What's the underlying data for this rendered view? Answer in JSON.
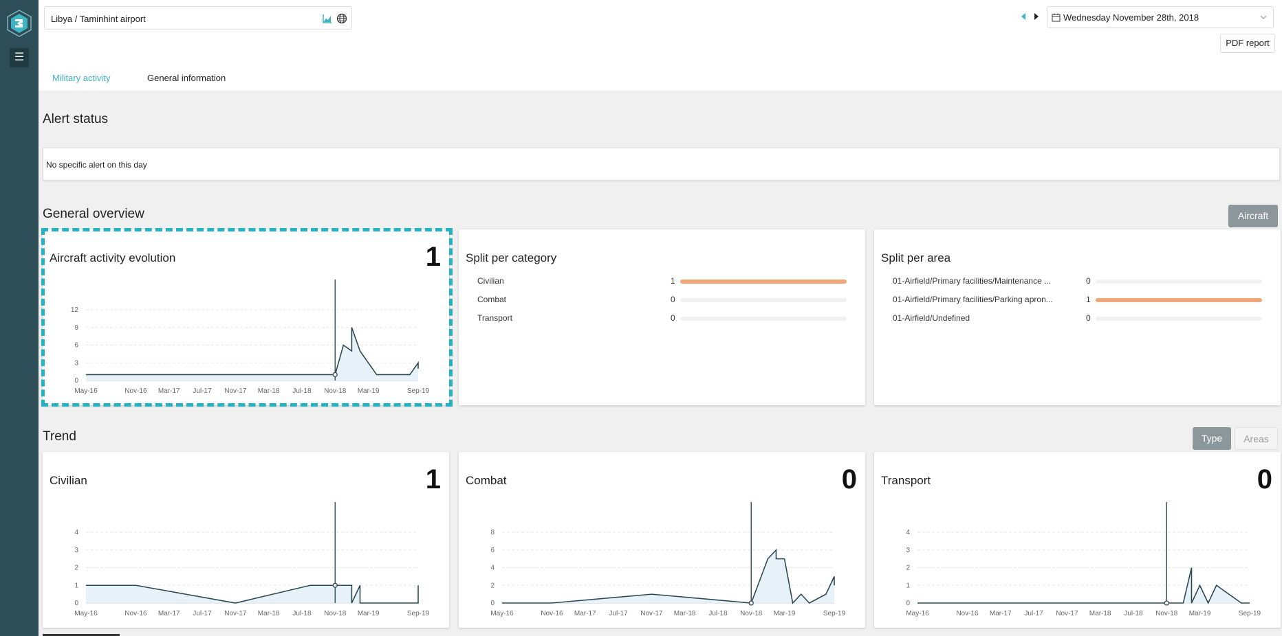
{
  "header": {
    "location": "Libya / Taminhint airport",
    "date": "Wednesday November 28th, 2018",
    "pdf_label": "PDF report",
    "tabs": [
      {
        "label": "Military activity",
        "active": true
      },
      {
        "label": "General information",
        "active": false
      }
    ]
  },
  "alert": {
    "title": "Alert status",
    "message": "No specific alert on this day"
  },
  "overview": {
    "title": "General overview",
    "toggle_label": "Aircraft",
    "activity": {
      "title": "Aircraft activity evolution",
      "value": "1"
    },
    "split_category": {
      "title": "Split per category",
      "rows": [
        {
          "label": "Civilian",
          "value": "1",
          "fraction": 1
        },
        {
          "label": "Combat",
          "value": "0",
          "fraction": 0
        },
        {
          "label": "Transport",
          "value": "0",
          "fraction": 0
        }
      ]
    },
    "split_area": {
      "title": "Split per area",
      "rows": [
        {
          "label": "01-Airfield/Primary facilities/Maintenance ...",
          "value": "0",
          "fraction": 0
        },
        {
          "label": "01-Airfield/Primary facilities/Parking apron...",
          "value": "1",
          "fraction": 1
        },
        {
          "label": "01-Airfield/Undefined",
          "value": "0",
          "fraction": 0
        }
      ]
    }
  },
  "trend": {
    "title": "Trend",
    "type_label": "Type",
    "areas_label": "Areas",
    "cards": [
      {
        "title": "Civilian",
        "value": "1"
      },
      {
        "title": "Combat",
        "value": "0"
      },
      {
        "title": "Transport",
        "value": "0"
      }
    ]
  },
  "chart_data": [
    {
      "type": "area",
      "x": [
        "May-16",
        "Nov-16",
        "Mar-17",
        "Jul-17",
        "Nov-17",
        "Mar-18",
        "Jul-18",
        "Nov-18",
        "Mar-19",
        "Sep-19"
      ],
      "ylim": [
        0,
        12
      ],
      "yticks": [
        0,
        3,
        6,
        9,
        12
      ],
      "points": [
        [
          "May-16",
          1
        ],
        [
          "Nov-18",
          1
        ],
        [
          "Dec-18",
          6
        ],
        [
          "Jan-19",
          5
        ],
        [
          "Jan-19",
          9
        ],
        [
          "Feb-19",
          5
        ],
        [
          "Feb-19",
          5
        ],
        [
          "Mar-19",
          3
        ],
        [
          "Apr-19",
          1
        ],
        [
          "Aug-19",
          1
        ],
        [
          "Sep-19",
          3
        ],
        [
          "Sep-19",
          2
        ],
        [
          "Sep-19",
          3
        ]
      ],
      "marker": "Nov-18"
    },
    {
      "type": "area",
      "x": [
        "May-16",
        "Nov-16",
        "Mar-17",
        "Jul-17",
        "Nov-17",
        "Mar-18",
        "Jul-18",
        "Nov-18",
        "Mar-19",
        "Sep-19"
      ],
      "ylim": [
        0,
        4
      ],
      "yticks": [
        0,
        1,
        2,
        3,
        4
      ],
      "points": [
        [
          "May-16",
          1
        ],
        [
          "Nov-16",
          1
        ],
        [
          "Nov-17",
          0
        ],
        [
          "Aug-18",
          1
        ],
        [
          "Nov-18",
          1
        ],
        [
          "Jan-19",
          1
        ],
        [
          "Jan-19",
          0
        ],
        [
          "Feb-19",
          1
        ],
        [
          "Feb-19",
          0
        ],
        [
          "Sep-19",
          0
        ],
        [
          "Sep-19",
          1
        ]
      ],
      "marker": "Nov-18"
    },
    {
      "type": "area",
      "x": [
        "May-16",
        "Nov-16",
        "Mar-17",
        "Jul-17",
        "Nov-17",
        "Mar-18",
        "Jul-18",
        "Nov-18",
        "Mar-19",
        "Sep-19"
      ],
      "ylim": [
        0,
        8
      ],
      "yticks": [
        0,
        2,
        4,
        6,
        8
      ],
      "points": [
        [
          "May-16",
          0
        ],
        [
          "Nov-16",
          0
        ],
        [
          "Nov-17",
          1
        ],
        [
          "Nov-18",
          0
        ],
        [
          "Jan-19",
          5
        ],
        [
          "Feb-19",
          6
        ],
        [
          "Feb-19",
          5
        ],
        [
          "Mar-19",
          5
        ],
        [
          "Apr-19",
          0
        ],
        [
          "May-19",
          1
        ],
        [
          "Jun-19",
          0
        ],
        [
          "Aug-19",
          1
        ],
        [
          "Sep-19",
          3
        ],
        [
          "Sep-19",
          2
        ]
      ],
      "marker": "Nov-18"
    },
    {
      "type": "area",
      "x": [
        "May-16",
        "Nov-16",
        "Mar-17",
        "Jul-17",
        "Nov-17",
        "Mar-18",
        "Jul-18",
        "Nov-18",
        "Mar-19",
        "Sep-19"
      ],
      "ylim": [
        0,
        4
      ],
      "yticks": [
        0,
        1,
        2,
        3,
        4
      ],
      "points": [
        [
          "May-16",
          0
        ],
        [
          "Nov-18",
          0
        ],
        [
          "Jan-19",
          0
        ],
        [
          "Feb-19",
          2
        ],
        [
          "Feb-19",
          0
        ],
        [
          "Mar-19",
          1
        ],
        [
          "Apr-19",
          0
        ],
        [
          "May-19",
          1
        ],
        [
          "Aug-19",
          0
        ],
        [
          "Sep-19",
          0
        ]
      ],
      "marker": "Nov-18"
    }
  ],
  "colors": {
    "sidebar": "#2e4e57",
    "accent": "#3fb3c4",
    "bar": "#f0a87a",
    "line": "#2d4a52",
    "highlight": "#25b3c4"
  }
}
